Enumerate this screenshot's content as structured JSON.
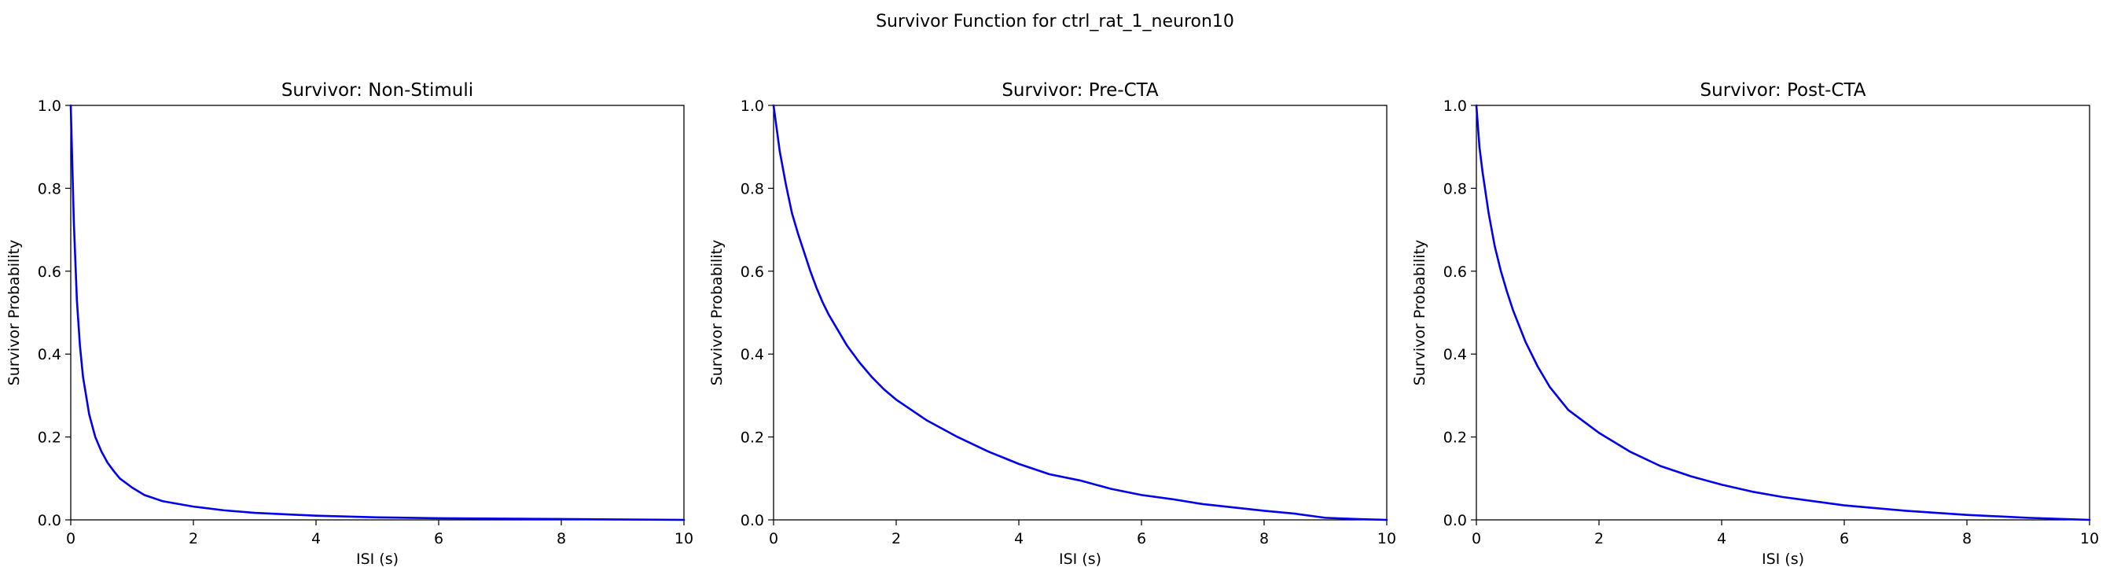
{
  "figure": {
    "title": "Survivor Function for ctrl_rat_1_neuron10"
  },
  "colors": {
    "curve": "#0000ee",
    "axes": "#000000",
    "background": "#ffffff"
  },
  "chart_data": [
    {
      "type": "line",
      "title": "Survivor: Non-Stimuli",
      "xlabel": "ISI (s)",
      "ylabel": "Survivor Probability",
      "xlim": [
        0,
        10
      ],
      "ylim": [
        0,
        1
      ],
      "xticks": [
        0,
        2,
        4,
        6,
        8,
        10
      ],
      "yticks": [
        0.0,
        0.2,
        0.4,
        0.6,
        0.8,
        1.0
      ],
      "grid": false,
      "series": [
        {
          "x": [
            0,
            0.05,
            0.1,
            0.15,
            0.2,
            0.3,
            0.4,
            0.5,
            0.6,
            0.7,
            0.8,
            1.0,
            1.2,
            1.5,
            2.0,
            2.5,
            3.0,
            4.0,
            5.0,
            6.0,
            8.0,
            10.0
          ],
          "y": [
            1.0,
            0.72,
            0.53,
            0.42,
            0.345,
            0.255,
            0.2,
            0.165,
            0.138,
            0.118,
            0.1,
            0.078,
            0.06,
            0.045,
            0.032,
            0.023,
            0.017,
            0.01,
            0.006,
            0.004,
            0.002,
            0.0
          ]
        }
      ]
    },
    {
      "type": "line",
      "title": "Survivor: Pre-CTA",
      "xlabel": "ISI (s)",
      "ylabel": "Survivor Probability",
      "xlim": [
        0,
        10
      ],
      "ylim": [
        0,
        1
      ],
      "xticks": [
        0,
        2,
        4,
        6,
        8,
        10
      ],
      "yticks": [
        0.0,
        0.2,
        0.4,
        0.6,
        0.8,
        1.0
      ],
      "grid": false,
      "series": [
        {
          "x": [
            0,
            0.1,
            0.2,
            0.3,
            0.4,
            0.5,
            0.6,
            0.7,
            0.8,
            0.9,
            1.0,
            1.2,
            1.4,
            1.6,
            1.8,
            2.0,
            2.5,
            3.0,
            3.5,
            4.0,
            4.5,
            5.0,
            5.5,
            6.0,
            6.5,
            7.0,
            7.5,
            8.0,
            8.5,
            9.0,
            9.5,
            10.0
          ],
          "y": [
            1.0,
            0.89,
            0.81,
            0.74,
            0.69,
            0.645,
            0.6,
            0.56,
            0.525,
            0.495,
            0.47,
            0.42,
            0.38,
            0.345,
            0.315,
            0.29,
            0.24,
            0.2,
            0.165,
            0.135,
            0.11,
            0.095,
            0.075,
            0.06,
            0.05,
            0.038,
            0.03,
            0.022,
            0.015,
            0.005,
            0.002,
            0.0
          ]
        }
      ]
    },
    {
      "type": "line",
      "title": "Survivor: Post-CTA",
      "xlabel": "ISI (s)",
      "ylabel": "Survivor Probability",
      "xlim": [
        0,
        10
      ],
      "ylim": [
        0,
        1
      ],
      "xticks": [
        0,
        2,
        4,
        6,
        8,
        10
      ],
      "yticks": [
        0.0,
        0.2,
        0.4,
        0.6,
        0.8,
        1.0
      ],
      "grid": false,
      "series": [
        {
          "x": [
            0,
            0.05,
            0.1,
            0.2,
            0.3,
            0.4,
            0.5,
            0.6,
            0.8,
            1.0,
            1.2,
            1.5,
            2.0,
            2.5,
            3.0,
            3.5,
            4.0,
            4.5,
            5.0,
            6.0,
            7.0,
            8.0,
            9.0,
            10.0
          ],
          "y": [
            1.0,
            0.9,
            0.84,
            0.74,
            0.66,
            0.6,
            0.55,
            0.505,
            0.43,
            0.37,
            0.32,
            0.265,
            0.21,
            0.165,
            0.13,
            0.105,
            0.085,
            0.068,
            0.055,
            0.035,
            0.022,
            0.012,
            0.005,
            0.0
          ]
        }
      ]
    }
  ]
}
